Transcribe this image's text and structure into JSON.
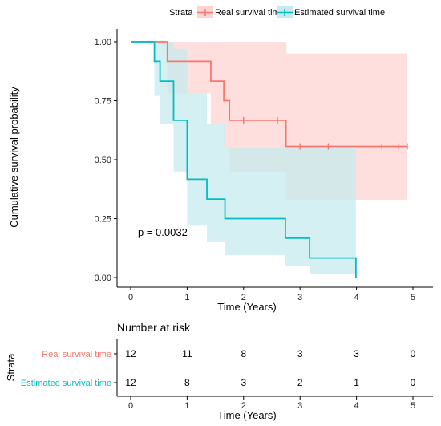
{
  "chart_data": {
    "type": "line",
    "subtype": "kaplan-meier",
    "legend": {
      "title": "Strata",
      "placement": "top",
      "entries": [
        "Real survival time",
        "Estimated survival time"
      ]
    },
    "ylabel": "Cumulative survival probability",
    "xlabel": "Time (Years)",
    "xlim": [
      0,
      5
    ],
    "ylim": [
      0,
      1
    ],
    "xticks": [
      "0",
      "1",
      "2",
      "3",
      "4",
      "5"
    ],
    "yticks": [
      "0.00",
      "0.25",
      "0.50",
      "0.75",
      "1.00"
    ],
    "annotation": "p = 0.0032",
    "grid": false,
    "series": [
      {
        "name": "Real survival time",
        "color": "#F8766D",
        "fill": "#FDD4D1",
        "steps": [
          [
            0,
            1.0
          ],
          [
            0.65,
            0.917
          ],
          [
            1.42,
            0.833
          ],
          [
            1.65,
            0.75
          ],
          [
            1.75,
            0.667
          ],
          [
            2.75,
            0.556
          ],
          [
            4.9,
            0.556
          ]
        ],
        "lower": [
          [
            0,
            1.0
          ],
          [
            0.65,
            0.78
          ],
          [
            1.42,
            0.65
          ],
          [
            1.65,
            0.55
          ],
          [
            1.75,
            0.45
          ],
          [
            2.75,
            0.33
          ],
          [
            4.9,
            0.33
          ]
        ],
        "upper": [
          [
            0,
            1.0
          ],
          [
            0.65,
            1.0
          ],
          [
            2.75,
            1.0
          ],
          [
            2.76,
            0.95
          ],
          [
            4.9,
            0.95
          ]
        ],
        "censored": [
          [
            2.0,
            0.667
          ],
          [
            2.6,
            0.667
          ],
          [
            3.0,
            0.556
          ],
          [
            3.5,
            0.556
          ],
          [
            4.45,
            0.556
          ],
          [
            4.75,
            0.556
          ],
          [
            4.9,
            0.556
          ]
        ]
      },
      {
        "name": "Estimated survival time",
        "color": "#00BFC4",
        "fill": "#C6EBEE",
        "steps": [
          [
            0,
            1.0
          ],
          [
            0.42,
            0.917
          ],
          [
            0.52,
            0.833
          ],
          [
            0.76,
            0.667
          ],
          [
            1.0,
            0.417
          ],
          [
            1.35,
            0.333
          ],
          [
            1.67,
            0.25
          ],
          [
            2.74,
            0.167
          ],
          [
            3.17,
            0.083
          ],
          [
            3.99,
            0.0
          ]
        ],
        "lower": [
          [
            0,
            1.0
          ],
          [
            0.42,
            0.77
          ],
          [
            0.52,
            0.65
          ],
          [
            0.76,
            0.45
          ],
          [
            1.0,
            0.22
          ],
          [
            1.35,
            0.15
          ],
          [
            1.67,
            0.095
          ],
          [
            2.74,
            0.05
          ],
          [
            3.17,
            0.015
          ],
          [
            3.99,
            0.015
          ]
        ],
        "upper": [
          [
            0,
            1.0
          ],
          [
            0.52,
            1.0
          ],
          [
            0.76,
            0.97
          ],
          [
            1.0,
            0.78
          ],
          [
            1.35,
            0.65
          ],
          [
            1.67,
            0.55
          ],
          [
            2.74,
            0.55
          ],
          [
            3.99,
            0.55
          ]
        ],
        "censored": []
      }
    ],
    "risk_table": {
      "title": "Number at risk",
      "ylabel": "Strata",
      "xlabel": "Time (Years)",
      "times": [
        0,
        1,
        2,
        3,
        4,
        5
      ],
      "rows": [
        {
          "label": "Real survival time",
          "color": "#F8766D",
          "counts": [
            "12",
            "11",
            "8",
            "3",
            "3",
            "0"
          ]
        },
        {
          "label": "Estimated survival time",
          "color": "#00BFC4",
          "counts": [
            "12",
            "8",
            "3",
            "2",
            "1",
            "0"
          ]
        }
      ]
    }
  }
}
